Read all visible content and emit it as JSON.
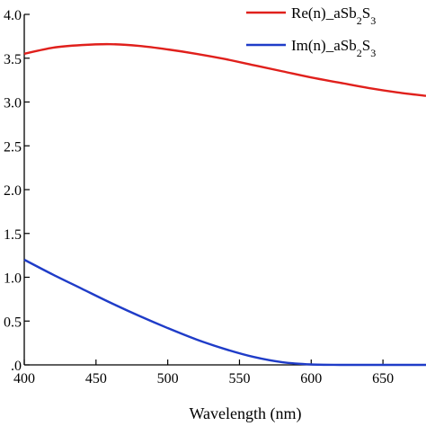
{
  "chart_data": {
    "type": "line",
    "title": "",
    "xlabel": "Wavelength (nm)",
    "ylabel": "",
    "xlim": [
      400,
      680
    ],
    "ylim": [
      0.0,
      4.0
    ],
    "x_ticks": [
      "400",
      "450",
      "500",
      "550",
      "600",
      "650"
    ],
    "y_ticks": [
      ".0",
      "0.5",
      "1.0",
      "1.5",
      "2.0",
      "2.5",
      "3.0",
      "3.5",
      "4.0"
    ],
    "y_tick_values": [
      0.0,
      0.5,
      1.0,
      1.5,
      2.0,
      2.5,
      3.0,
      3.5,
      4.0
    ],
    "x_tick_values": [
      400,
      450,
      500,
      550,
      600,
      650
    ],
    "grid": false,
    "legend_position": "top-right",
    "series": [
      {
        "name": "Re(n)_aSb2S3",
        "color": "#e0201c",
        "x": [
          400,
          420,
          440,
          460,
          480,
          500,
          520,
          540,
          560,
          580,
          600,
          620,
          640,
          660,
          680
        ],
        "y": [
          3.55,
          3.62,
          3.65,
          3.66,
          3.64,
          3.6,
          3.55,
          3.49,
          3.42,
          3.35,
          3.28,
          3.22,
          3.16,
          3.11,
          3.07
        ]
      },
      {
        "name": "Im(n)_aSb2S3",
        "color": "#1f3cc8",
        "x": [
          400,
          420,
          440,
          460,
          480,
          500,
          520,
          540,
          560,
          580,
          600,
          620,
          640,
          660,
          680
        ],
        "y": [
          1.2,
          1.03,
          0.87,
          0.71,
          0.56,
          0.42,
          0.29,
          0.18,
          0.09,
          0.03,
          0.005,
          0.0,
          0.0,
          0.0,
          0.0
        ]
      }
    ]
  }
}
